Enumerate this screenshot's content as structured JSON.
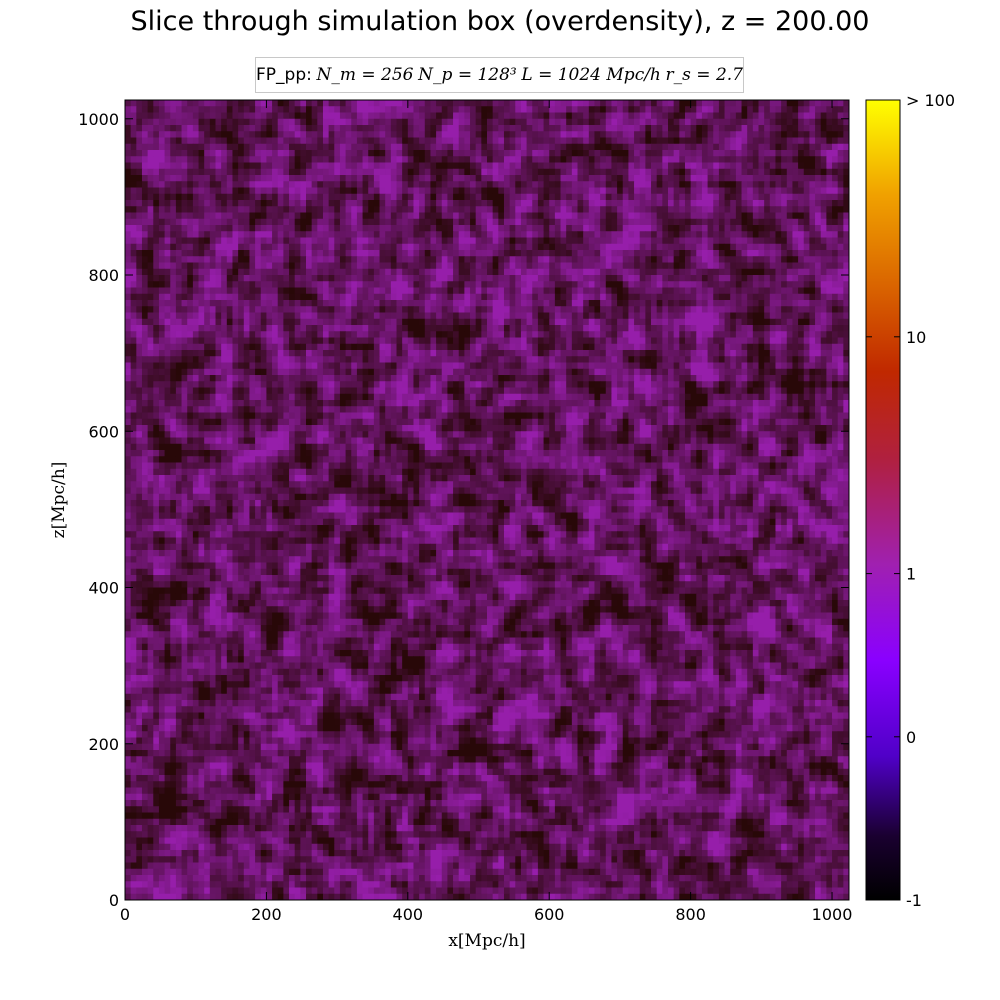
{
  "title": "Slice through simulation box (overdensity), z = 200.00",
  "info": {
    "prefix": "FP_pp:",
    "Nm": "N_m = 256",
    "Np": "N_p = 128³",
    "L": "L = 1024 Mpc/h",
    "rs": "r_s = 2.7"
  },
  "chart_data": {
    "type": "heatmap",
    "title": "Slice through simulation box (overdensity), z = 200.00",
    "xlabel": "x[Mpc/h]",
    "ylabel": "z[Mpc/h]",
    "xlim": [
      0,
      1024
    ],
    "ylim": [
      0,
      1024
    ],
    "x_ticks": [
      0,
      200,
      400,
      600,
      800,
      1000
    ],
    "y_ticks": [
      0,
      200,
      400,
      600,
      800,
      1000
    ],
    "colorbar": {
      "label_ticks": [
        {
          "label": "-1",
          "position_fraction": 0.0
        },
        {
          "label": "0",
          "position_fraction": 0.204
        },
        {
          "label": "1",
          "position_fraction": 0.408
        },
        {
          "label": "10",
          "position_fraction": 0.704
        },
        {
          "label": "> 100",
          "position_fraction": 1.0
        }
      ],
      "colormap": [
        "#000000",
        "#3a0070",
        "#7a00ff",
        "#a020c0",
        "#c02010",
        "#e07000",
        "#ffa000",
        "#ffff00"
      ]
    },
    "field_description_values": {
      "typical_overdensity_range": [
        -1,
        1
      ]
    }
  },
  "colors": {
    "background": "#ffffff",
    "dark_cell": "#2a0808",
    "mid_cell": "#5a1450",
    "bright_cell": "#9a1fb0"
  }
}
